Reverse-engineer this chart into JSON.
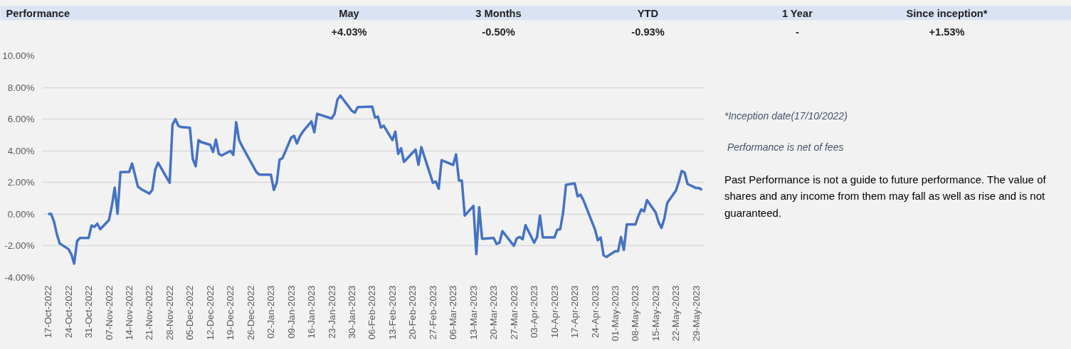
{
  "chart_data": [
    {
      "type": "other",
      "title": "Performance",
      "categories": [
        "May",
        "3 Months",
        "YTD",
        "1 Year",
        "Since inception*"
      ],
      "values": [
        4.03,
        -0.5,
        -0.93,
        null,
        1.53
      ],
      "value_labels": [
        "+4.03%",
        "-0.50%",
        "-0.93%",
        "-",
        "+1.53%"
      ]
    },
    {
      "type": "line",
      "color": "#4472c4",
      "grid": "y",
      "marker": "none",
      "line_style": "solid",
      "x": [
        "2022-10-17",
        "2022-10-18",
        "2022-10-19",
        "2022-10-20",
        "2022-10-21",
        "2022-10-24",
        "2022-10-25",
        "2022-10-26",
        "2022-10-27",
        "2022-10-28",
        "2022-10-31",
        "2022-11-01",
        "2022-11-02",
        "2022-11-03",
        "2022-11-04",
        "2022-11-07",
        "2022-11-08",
        "2022-11-09",
        "2022-11-10",
        "2022-11-11",
        "2022-11-14",
        "2022-11-15",
        "2022-11-16",
        "2022-11-17",
        "2022-11-18",
        "2022-11-21",
        "2022-11-22",
        "2022-11-23",
        "2022-11-24",
        "2022-11-28",
        "2022-11-29",
        "2022-11-30",
        "2022-12-01",
        "2022-12-02",
        "2022-12-05",
        "2022-12-06",
        "2022-12-07",
        "2022-12-08",
        "2022-12-09",
        "2022-12-12",
        "2022-12-13",
        "2022-12-14",
        "2022-12-15",
        "2022-12-16",
        "2022-12-19",
        "2022-12-20",
        "2022-12-21",
        "2022-12-22",
        "2022-12-23",
        "2022-12-28",
        "2022-12-29",
        "2022-12-30",
        "2023-01-02",
        "2023-01-03",
        "2023-01-04",
        "2023-01-05",
        "2023-01-06",
        "2023-01-09",
        "2023-01-10",
        "2023-01-11",
        "2023-01-12",
        "2023-01-13",
        "2023-01-16",
        "2023-01-17",
        "2023-01-18",
        "2023-01-23",
        "2023-01-24",
        "2023-01-25",
        "2023-01-26",
        "2023-01-30",
        "2023-01-31",
        "2023-02-01",
        "2023-02-06",
        "2023-02-07",
        "2023-02-08",
        "2023-02-09",
        "2023-02-10",
        "2023-02-13",
        "2023-02-14",
        "2023-02-15",
        "2023-02-16",
        "2023-02-17",
        "2023-02-21",
        "2023-02-22",
        "2023-02-23",
        "2023-02-27",
        "2023-02-28",
        "2023-03-01",
        "2023-03-02",
        "2023-03-06",
        "2023-03-07",
        "2023-03-08",
        "2023-03-09",
        "2023-03-10",
        "2023-03-13",
        "2023-03-14",
        "2023-03-15",
        "2023-03-16",
        "2023-03-20",
        "2023-03-21",
        "2023-03-22",
        "2023-03-23",
        "2023-03-27",
        "2023-03-28",
        "2023-03-29",
        "2023-03-30",
        "2023-03-31",
        "2023-04-03",
        "2023-04-04",
        "2023-04-05",
        "2023-04-06",
        "2023-04-10",
        "2023-04-11",
        "2023-04-12",
        "2023-04-13",
        "2023-04-14",
        "2023-04-17",
        "2023-04-18",
        "2023-04-19",
        "2023-04-20",
        "2023-04-24",
        "2023-04-25",
        "2023-04-26",
        "2023-04-27",
        "2023-04-28",
        "2023-05-01",
        "2023-05-02",
        "2023-05-03",
        "2023-05-04",
        "2023-05-05",
        "2023-05-08",
        "2023-05-09",
        "2023-05-10",
        "2023-05-11",
        "2023-05-12",
        "2023-05-15",
        "2023-05-16",
        "2023-05-17",
        "2023-05-18",
        "2023-05-19",
        "2023-05-22",
        "2023-05-23",
        "2023-05-24",
        "2023-05-25",
        "2023-05-26",
        "2023-05-29",
        "2023-05-30",
        "2023-05-31"
      ],
      "values": [
        0.0,
        0.03,
        -0.45,
        -1.25,
        -1.85,
        -2.2,
        -2.52,
        -3.12,
        -1.7,
        -1.5,
        -1.5,
        -0.72,
        -0.8,
        -0.6,
        -0.95,
        -0.38,
        0.48,
        1.68,
        0.03,
        2.66,
        2.66,
        3.2,
        2.5,
        1.75,
        1.6,
        1.3,
        1.53,
        2.8,
        3.25,
        1.98,
        5.66,
        6.0,
        5.58,
        5.5,
        5.46,
        3.48,
        3.03,
        4.68,
        4.55,
        4.38,
        3.93,
        4.71,
        3.81,
        3.71,
        4.0,
        3.74,
        5.81,
        4.68,
        4.31,
        2.66,
        2.5,
        2.5,
        2.5,
        1.53,
        1.98,
        3.44,
        3.53,
        4.83,
        4.95,
        4.46,
        4.91,
        5.2,
        5.86,
        5.17,
        6.34,
        6.04,
        6.34,
        7.24,
        7.49,
        6.52,
        6.41,
        6.76,
        6.79,
        6.11,
        6.16,
        5.47,
        5.59,
        4.68,
        5.21,
        3.81,
        4.16,
        3.3,
        4.08,
        3.11,
        4.23,
        1.98,
        2.06,
        1.61,
        3.41,
        3.11,
        3.78,
        2.13,
        2.13,
        -0.09,
        0.53,
        -2.52,
        0.44,
        -1.55,
        -1.5,
        -1.88,
        -1.8,
        -1.07,
        -2.0,
        -1.52,
        -1.44,
        -1.58,
        -0.69,
        -1.8,
        -1.44,
        -0.08,
        -1.47,
        -1.47,
        -0.98,
        -0.95,
        0.1,
        1.86,
        1.95,
        1.13,
        1.23,
        0.9,
        -0.95,
        -1.65,
        -1.47,
        -2.6,
        -2.7,
        -2.34,
        -2.34,
        -1.44,
        -2.25,
        -0.65,
        -0.65,
        -0.12,
        0.3,
        0.18,
        0.89,
        0.11,
        -0.5,
        -0.87,
        -0.27,
        0.71,
        1.5,
        2.06,
        2.73,
        2.63,
        1.91,
        1.65,
        1.65,
        1.53
      ],
      "xlim": [
        "2022-10-15",
        "2023-06-01"
      ],
      "xticks": [
        {
          "value": "2022-10-17",
          "label": "17-Oct-2022"
        },
        {
          "value": "2022-10-24",
          "label": "24-Oct-2022"
        },
        {
          "value": "2022-10-31",
          "label": "31-Oct-2022"
        },
        {
          "value": "2022-11-07",
          "label": "07-Nov-2022"
        },
        {
          "value": "2022-11-14",
          "label": "14-Nov-2022"
        },
        {
          "value": "2022-11-21",
          "label": "21-Nov-2022"
        },
        {
          "value": "2022-11-28",
          "label": "28-Nov-2022"
        },
        {
          "value": "2022-12-05",
          "label": "05-Dec-2022"
        },
        {
          "value": "2022-12-12",
          "label": "12-Dec-2022"
        },
        {
          "value": "2022-12-19",
          "label": "19-Dec-2022"
        },
        {
          "value": "2022-12-26",
          "label": "26-Dec-2022"
        },
        {
          "value": "2023-01-02",
          "label": "02-Jan-2023"
        },
        {
          "value": "2023-01-09",
          "label": "09-Jan-2023"
        },
        {
          "value": "2023-01-16",
          "label": "16-Jan-2023"
        },
        {
          "value": "2023-01-23",
          "label": "23-Jan-2023"
        },
        {
          "value": "2023-01-30",
          "label": "30-Jan-2023"
        },
        {
          "value": "2023-02-06",
          "label": "06-Feb-2023"
        },
        {
          "value": "2023-02-13",
          "label": "13-Feb-2023"
        },
        {
          "value": "2023-02-20",
          "label": "20-Feb-2023"
        },
        {
          "value": "2023-02-27",
          "label": "27-Feb-2023"
        },
        {
          "value": "2023-03-06",
          "label": "06-Mar-2023"
        },
        {
          "value": "2023-03-13",
          "label": "13-Mar-2023"
        },
        {
          "value": "2023-03-20",
          "label": "20-Mar-2023"
        },
        {
          "value": "2023-03-27",
          "label": "27-Mar-2023"
        },
        {
          "value": "2023-04-03",
          "label": "03-Apr-2023"
        },
        {
          "value": "2023-04-10",
          "label": "10-Apr-2023"
        },
        {
          "value": "2023-04-17",
          "label": "17-Apr-2023"
        },
        {
          "value": "2023-04-24",
          "label": "24-Apr-2023"
        },
        {
          "value": "2023-05-01",
          "label": "01-May-2023"
        },
        {
          "value": "2023-05-08",
          "label": "08-May-2023"
        },
        {
          "value": "2023-05-15",
          "label": "15-May-2023"
        },
        {
          "value": "2023-05-22",
          "label": "22-May-2023"
        },
        {
          "value": "2023-05-29",
          "label": "29-May-2023"
        }
      ],
      "ylim": [
        -4,
        10
      ],
      "yticks": [
        {
          "value": -4,
          "label": "-4.00%"
        },
        {
          "value": -2,
          "label": "-2.00%"
        },
        {
          "value": 0,
          "label": "0.00%"
        },
        {
          "value": 2,
          "label": "2.00%"
        },
        {
          "value": 4,
          "label": "4.00%"
        },
        {
          "value": 6,
          "label": "6.00%"
        },
        {
          "value": 8,
          "label": "8.00%"
        },
        {
          "value": 10,
          "label": "10.00%"
        }
      ],
      "annotations": [
        "*Inception date(17/10/2022)",
        "Performance is net of fees",
        "Past Performance is not a guide to future performance. The value of shares and any income from them may fall as well as rise and is not guaranteed."
      ]
    }
  ]
}
